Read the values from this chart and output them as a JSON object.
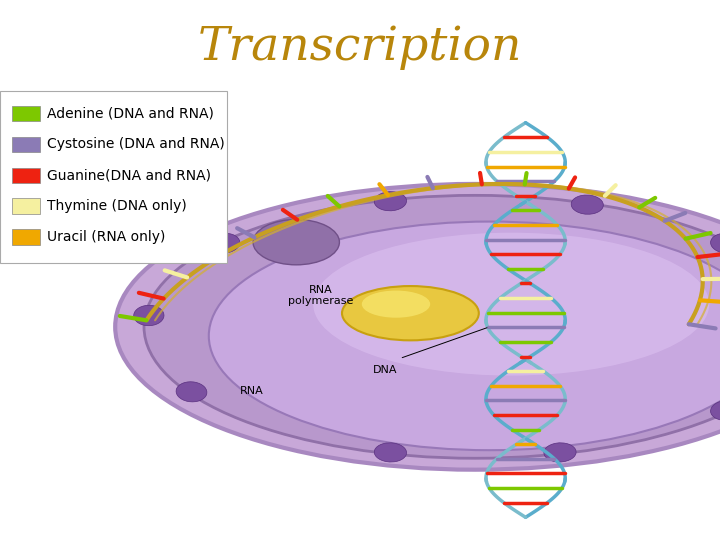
{
  "title": "Transcription",
  "title_color": "#B8860B",
  "title_fontsize": 34,
  "header_bg_color": "#C5C8E8",
  "body_bg_color": "#FFFFFF",
  "legend_items": [
    {
      "label": "Adenine (DNA and RNA)",
      "color": "#7DC800"
    },
    {
      "label": "Cystosine (DNA and RNA)",
      "color": "#8B7BB5"
    },
    {
      "label": "Guanine(DNA and RNA)",
      "color": "#EE2211"
    },
    {
      "label": "Thymine (DNA only)",
      "color": "#F5F0A0"
    },
    {
      "label": "Uracil (RNA only)",
      "color": "#F0A800"
    }
  ],
  "legend_fontsize": 10,
  "annotation_fontsize": 8,
  "outer_nucleus_color": "#C8A8D8",
  "outer_nucleus_edge": "#A888C0",
  "inner_nucleus_color": "#D0B0E0",
  "inner_nucleus_edge": "#A888C0",
  "pore_color": "#7B50A0",
  "pore_edge": "#5A3080",
  "rna_poly_color": "#E8C840",
  "rna_poly_edge": "#C8A010",
  "dna_strand1_color": "#5AADCC",
  "dna_strand2_color": "#7ABCCC",
  "base_colors": [
    "#7DC800",
    "#EE2211",
    "#F5F0A0",
    "#F0A800",
    "#8B7BB5",
    "#EE2211",
    "#7DC800",
    "#F0A800",
    "#8B7BB5",
    "#EE2211",
    "#7DC800",
    "#EE2211",
    "#F5F0A0",
    "#7DC800",
    "#8B7BB5"
  ],
  "rna_color": "#C8A820",
  "nuclear_opening_color": "#9870B8"
}
